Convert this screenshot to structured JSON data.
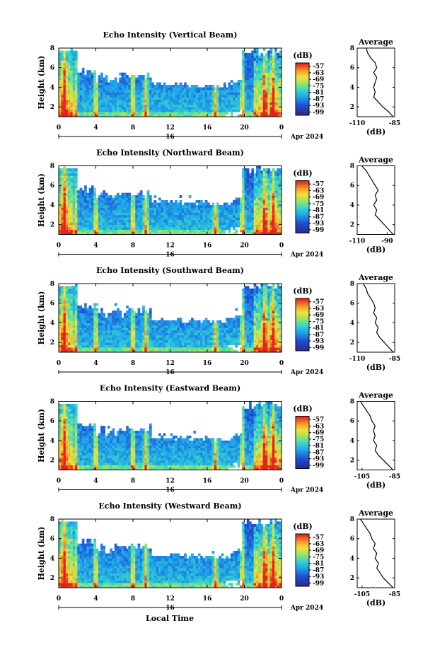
{
  "figure": {
    "xlabel": "Local Time",
    "day_label": "16",
    "date_label": "Apr 2024"
  },
  "chart_data": [
    {
      "type": "heatmap",
      "title": "Echo Intensity (Vertical Beam)",
      "ylabel": "Height (km)",
      "x_ticks": [
        "0",
        "4",
        "8",
        "12",
        "16",
        "20",
        "0"
      ],
      "y_ticks": [
        "2",
        "4",
        "6",
        "8"
      ],
      "xlim": [
        0,
        24
      ],
      "ylim": [
        1,
        8
      ],
      "colorbar_label": "(dB)",
      "colorbar_ticks": [
        "-57",
        "-63",
        "-69",
        "-75",
        "-81",
        "-87",
        "-93",
        "-99"
      ],
      "profile": {
        "title": "Average",
        "xlabel": "(dB)",
        "x_ticks": [
          "-110",
          "-85"
        ],
        "xlim": [
          -110,
          -85
        ],
        "y_ticks": [
          "2",
          "4",
          "6",
          "8"
        ],
        "points": [
          [
            -86,
            1
          ],
          [
            -89,
            1.5
          ],
          [
            -93,
            2
          ],
          [
            -96,
            2.5
          ],
          [
            -99,
            3
          ],
          [
            -98,
            3.5
          ],
          [
            -99,
            4
          ],
          [
            -98,
            4.5
          ],
          [
            -97,
            5
          ],
          [
            -99,
            5.5
          ],
          [
            -97,
            6
          ],
          [
            -98,
            6.5
          ],
          [
            -101,
            7
          ],
          [
            -103,
            7.5
          ],
          [
            -104,
            8
          ]
        ]
      }
    },
    {
      "type": "heatmap",
      "title": "Echo Intensity (Northward Beam)",
      "ylabel": "Height (km)",
      "x_ticks": [
        "0",
        "4",
        "8",
        "12",
        "16",
        "20",
        "0"
      ],
      "y_ticks": [
        "2",
        "4",
        "6",
        "8"
      ],
      "xlim": [
        0,
        24
      ],
      "ylim": [
        1,
        8
      ],
      "colorbar_label": "(dB)",
      "colorbar_ticks": [
        "-57",
        "-63",
        "-69",
        "-75",
        "-81",
        "-87",
        "-93",
        "-99"
      ],
      "profile": {
        "title": "Average",
        "xlabel": "(dB)",
        "x_ticks": [
          "-110",
          "-90"
        ],
        "xlim": [
          -110,
          -85
        ],
        "y_ticks": [
          "2",
          "4",
          "6",
          "8"
        ],
        "points": [
          [
            -86,
            1
          ],
          [
            -89,
            1.5
          ],
          [
            -92,
            2
          ],
          [
            -95,
            2.5
          ],
          [
            -98,
            3
          ],
          [
            -97,
            3.5
          ],
          [
            -99,
            4
          ],
          [
            -97,
            4.5
          ],
          [
            -98,
            5
          ],
          [
            -96,
            5.5
          ],
          [
            -98,
            6
          ],
          [
            -100,
            6.5
          ],
          [
            -102,
            7
          ],
          [
            -104,
            7.5
          ],
          [
            -107,
            8
          ]
        ]
      }
    },
    {
      "type": "heatmap",
      "title": "Echo Intensity (Southward Beam)",
      "ylabel": "Height (km)",
      "x_ticks": [
        "0",
        "4",
        "8",
        "12",
        "16",
        "20",
        "0"
      ],
      "y_ticks": [
        "2",
        "4",
        "6",
        "8"
      ],
      "xlim": [
        0,
        24
      ],
      "ylim": [
        1,
        8
      ],
      "colorbar_label": "(dB)",
      "colorbar_ticks": [
        "-57",
        "-63",
        "-69",
        "-75",
        "-81",
        "-87",
        "-93",
        "-99"
      ],
      "profile": {
        "title": "Average",
        "xlabel": "(dB)",
        "x_ticks": [
          "-110",
          "-85"
        ],
        "xlim": [
          -110,
          -85
        ],
        "y_ticks": [
          "2",
          "4",
          "6",
          "8"
        ],
        "points": [
          [
            -86,
            1
          ],
          [
            -89,
            1.5
          ],
          [
            -92,
            2
          ],
          [
            -95,
            2.5
          ],
          [
            -97,
            3
          ],
          [
            -96,
            3.5
          ],
          [
            -98,
            4
          ],
          [
            -97,
            4.5
          ],
          [
            -99,
            5
          ],
          [
            -98,
            5.5
          ],
          [
            -99,
            6
          ],
          [
            -101,
            6.5
          ],
          [
            -103,
            7
          ],
          [
            -104,
            7.5
          ],
          [
            -106,
            8
          ]
        ]
      }
    },
    {
      "type": "heatmap",
      "title": "Echo Intensity (Eastward Beam)",
      "ylabel": "Height (km)",
      "x_ticks": [
        "0",
        "4",
        "8",
        "12",
        "16",
        "20",
        "0"
      ],
      "y_ticks": [
        "2",
        "4",
        "6",
        "8"
      ],
      "xlim": [
        0,
        24
      ],
      "ylim": [
        1,
        8
      ],
      "colorbar_label": "(dB)",
      "colorbar_ticks": [
        "-57",
        "-63",
        "-69",
        "-75",
        "-81",
        "-87",
        "-93",
        "-99"
      ],
      "profile": {
        "title": "Average",
        "xlabel": "(dB)",
        "x_ticks": [
          "-105",
          "-85"
        ],
        "xlim": [
          -108,
          -85
        ],
        "y_ticks": [
          "2",
          "4",
          "6",
          "8"
        ],
        "points": [
          [
            -86,
            1
          ],
          [
            -89,
            1.5
          ],
          [
            -92,
            2
          ],
          [
            -95,
            2.5
          ],
          [
            -97,
            3
          ],
          [
            -96,
            3.5
          ],
          [
            -98,
            4
          ],
          [
            -97,
            4.5
          ],
          [
            -98,
            5
          ],
          [
            -97,
            5.5
          ],
          [
            -99,
            6
          ],
          [
            -100,
            6.5
          ],
          [
            -102,
            7
          ],
          [
            -104,
            7.5
          ],
          [
            -106,
            8
          ]
        ]
      }
    },
    {
      "type": "heatmap",
      "title": "Echo Intensity (Westward Beam)",
      "ylabel": "Height (km)",
      "x_ticks": [
        "0",
        "4",
        "8",
        "12",
        "16",
        "20",
        "0"
      ],
      "y_ticks": [
        "2",
        "4",
        "6",
        "8"
      ],
      "xlim": [
        0,
        24
      ],
      "ylim": [
        1,
        8
      ],
      "colorbar_label": "(dB)",
      "colorbar_ticks": [
        "-57",
        "-63",
        "-69",
        "-75",
        "-81",
        "-87",
        "-93",
        "-99"
      ],
      "profile": {
        "title": "Average",
        "xlabel": "(dB)",
        "x_ticks": [
          "-105",
          "-85"
        ],
        "xlim": [
          -108,
          -85
        ],
        "y_ticks": [
          "2",
          "4",
          "6",
          "8"
        ],
        "points": [
          [
            -86,
            1
          ],
          [
            -89,
            1.5
          ],
          [
            -92,
            2
          ],
          [
            -94,
            2.5
          ],
          [
            -96,
            3
          ],
          [
            -95,
            3.5
          ],
          [
            -97,
            4
          ],
          [
            -96,
            4.5
          ],
          [
            -98,
            5
          ],
          [
            -97,
            5.5
          ],
          [
            -99,
            6
          ],
          [
            -100,
            6.5
          ],
          [
            -102,
            7
          ],
          [
            -104,
            7.5
          ],
          [
            -106,
            8
          ]
        ]
      }
    }
  ]
}
